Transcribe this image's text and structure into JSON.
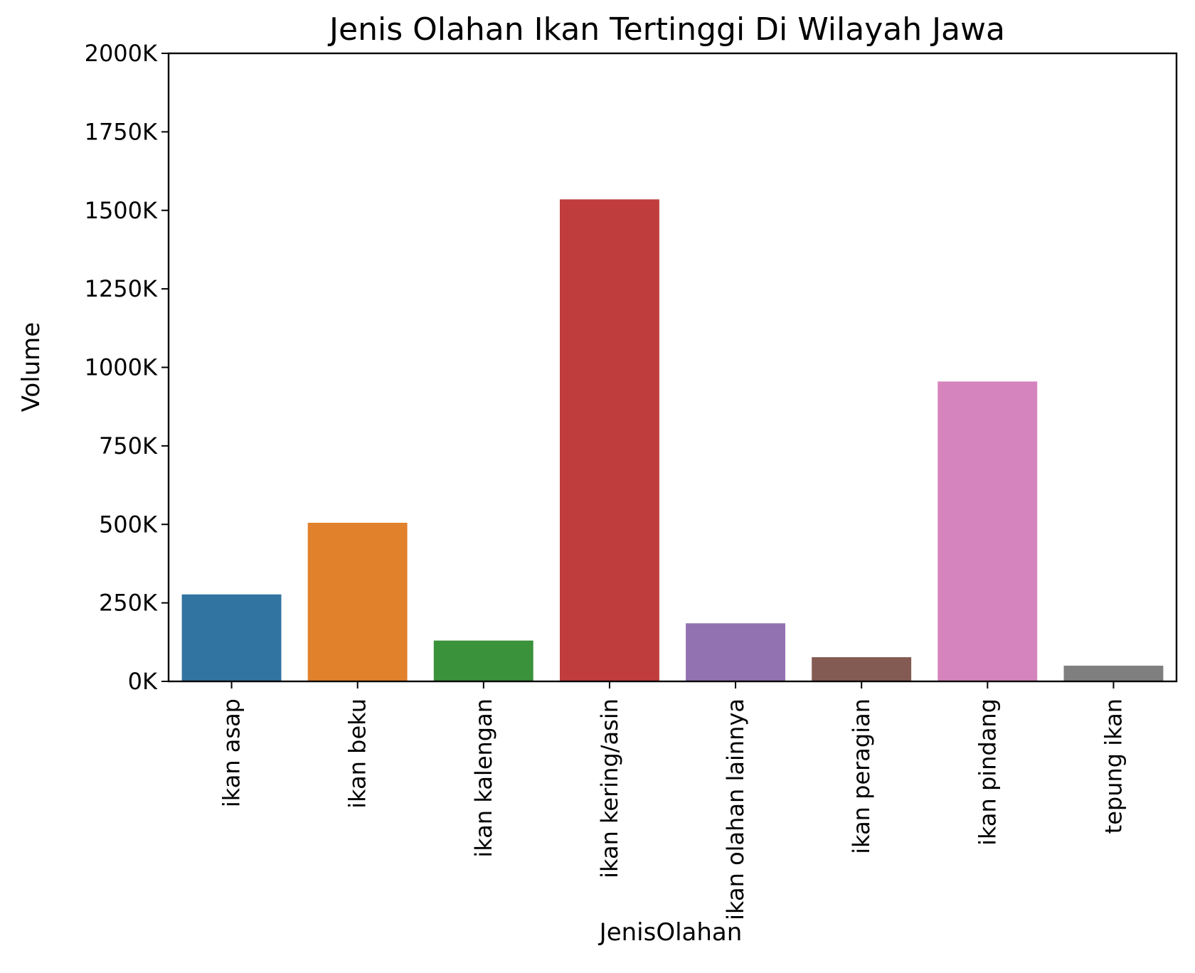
{
  "chart_data": {
    "type": "bar",
    "title": "Jenis Olahan Ikan Tertinggi Di Wilayah Jawa",
    "xlabel": "JenisOlahan",
    "ylabel": "Volume",
    "categories": [
      "ikan asap",
      "ikan beku",
      "ikan kalengan",
      "ikan kering/asin",
      "ikan olahan lainnya",
      "ikan peragian",
      "ikan pindang",
      "tepung ikan"
    ],
    "values": [
      277000,
      505000,
      130000,
      1535000,
      185000,
      77000,
      955000,
      50000
    ],
    "colors": [
      "#3274a1",
      "#e1812c",
      "#3a923a",
      "#c03d3e",
      "#9372b2",
      "#845b53",
      "#d684bd",
      "#7f7f7f"
    ],
    "ylim": [
      0,
      2000000
    ],
    "yticks": [
      0,
      250000,
      500000,
      750000,
      1000000,
      1250000,
      1500000,
      1750000,
      2000000
    ],
    "ytick_labels": [
      "0K",
      "250K",
      "500K",
      "750K",
      "1000K",
      "1250K",
      "1500K",
      "1750K",
      "2000K"
    ],
    "grid": false,
    "legend": "none"
  }
}
